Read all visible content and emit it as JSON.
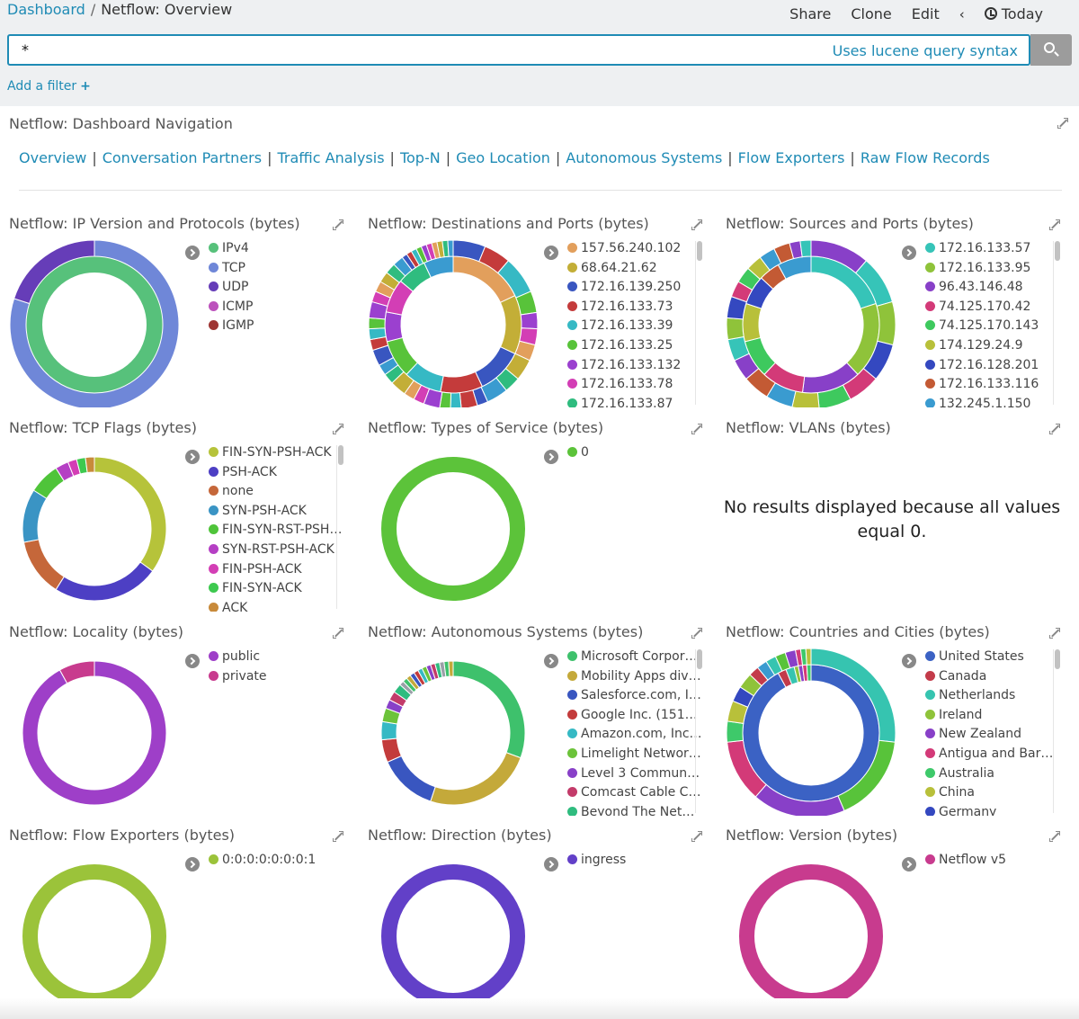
{
  "breadcrumb": {
    "parent": "Dashboard",
    "separator": "/",
    "current": "Netflow: Overview"
  },
  "topnav": {
    "share": "Share",
    "clone": "Clone",
    "edit": "Edit",
    "prev": "‹",
    "time": "Today"
  },
  "search": {
    "query": "*",
    "hint": "Uses lucene query syntax"
  },
  "add_filter": {
    "label": "Add a filter",
    "icon": "+"
  },
  "navigation": {
    "title": "Netflow: Dashboard Navigation",
    "links": [
      "Overview",
      "Conversation Partners",
      "Traffic Analysis",
      "Top-N",
      "Geo Location",
      "Autonomous Systems",
      "Flow Exporters",
      "Raw Flow Records"
    ],
    "separator": "|"
  },
  "colors": {
    "link": "#1f8bb5",
    "title": "#555555"
  },
  "panels": [
    {
      "title": "Netflow: IP Version and Protocols (bytes)",
      "legend": [
        {
          "label": "IPv4",
          "color": "#57c17b"
        },
        {
          "label": "TCP",
          "color": "#6f87d8"
        },
        {
          "label": "UDP",
          "color": "#663db8"
        },
        {
          "label": "ICMP",
          "color": "#bc52bc"
        },
        {
          "label": "IGMP",
          "color": "#9e3533"
        }
      ],
      "scrollbar": false
    },
    {
      "title": "Netflow: Destinations and Ports (bytes)",
      "legend": [
        {
          "label": "157.56.240.102",
          "color": "#e29f5c"
        },
        {
          "label": "68.64.21.62",
          "color": "#c3ae37"
        },
        {
          "label": "172.16.139.250",
          "color": "#3956c0"
        },
        {
          "label": "172.16.133.73",
          "color": "#c43b3b"
        },
        {
          "label": "172.16.133.39",
          "color": "#36b9c4"
        },
        {
          "label": "172.16.133.25",
          "color": "#58c33a"
        },
        {
          "label": "172.16.133.132",
          "color": "#9b40cf"
        },
        {
          "label": "172.16.133.78",
          "color": "#d33eb5"
        },
        {
          "label": "172.16.133.87",
          "color": "#2fbc7f"
        }
      ],
      "scrollbar": true
    },
    {
      "title": "Netflow: Sources and Ports (bytes)",
      "legend": [
        {
          "label": "172.16.133.57",
          "color": "#36c4b8"
        },
        {
          "label": "172.16.133.95",
          "color": "#8fc33a"
        },
        {
          "label": "96.43.146.48",
          "color": "#8840c8"
        },
        {
          "label": "74.125.170.42",
          "color": "#d33a78"
        },
        {
          "label": "74.125.170.143",
          "color": "#3ec95e"
        },
        {
          "label": "174.129.24.9",
          "color": "#b8c03a"
        },
        {
          "label": "172.16.128.201",
          "color": "#3448c0"
        },
        {
          "label": "172.16.133.116",
          "color": "#c35a34"
        },
        {
          "label": "132.245.1.150",
          "color": "#3a9bd0"
        }
      ],
      "scrollbar": true
    },
    {
      "title": "Netflow: TCP Flags (bytes)",
      "legend": [
        {
          "label": "FIN-SYN-PSH-ACK",
          "color": "#b6c33a"
        },
        {
          "label": "PSH-ACK",
          "color": "#4d3fc4"
        },
        {
          "label": "none",
          "color": "#c5673a"
        },
        {
          "label": "SYN-PSH-ACK",
          "color": "#3a94c4"
        },
        {
          "label": "FIN-SYN-RST-PSH-A...",
          "color": "#4fc43a"
        },
        {
          "label": "SYN-RST-PSH-ACK",
          "color": "#b53fc4"
        },
        {
          "label": "FIN-PSH-ACK",
          "color": "#d33eb5"
        },
        {
          "label": "FIN-SYN-ACK",
          "color": "#3ec94f"
        },
        {
          "label": "ACK",
          "color": "#c88a3a"
        }
      ],
      "scrollbar": true
    },
    {
      "title": "Netflow: Types of Service (bytes)",
      "legend": [
        {
          "label": "0",
          "color": "#5cc33a"
        }
      ],
      "scrollbar": false
    },
    {
      "title": "Netflow: VLANs (bytes)",
      "legend": [],
      "message": "No results displayed because all values equal 0.",
      "scrollbar": false
    },
    {
      "title": "Netflow: Locality (bytes)",
      "legend": [
        {
          "label": "public",
          "color": "#9e3fc8"
        },
        {
          "label": "private",
          "color": "#c83b8e"
        }
      ],
      "scrollbar": false
    },
    {
      "title": "Netflow: Autonomous Systems (bytes)",
      "legend": [
        {
          "label": "Microsoft Corporat...",
          "color": "#3ec16c"
        },
        {
          "label": "Mobility Apps divisi...",
          "color": "#c4a93a"
        },
        {
          "label": "Salesforce.com, Inc....",
          "color": "#3956c0"
        },
        {
          "label": "Google Inc. (15169)",
          "color": "#c33b3b"
        },
        {
          "label": "Amazon.com, Inc. (...",
          "color": "#36b9c4"
        },
        {
          "label": "Limelight Networks...",
          "color": "#6cc33a"
        },
        {
          "label": "Level 3 Communic...",
          "color": "#8840c8"
        },
        {
          "label": "Comcast Cable Co...",
          "color": "#c33b6a"
        },
        {
          "label": "Beyond The Netwo...",
          "color": "#2fbc7f"
        }
      ],
      "scrollbar": true
    },
    {
      "title": "Netflow: Countries and Cities (bytes)",
      "legend": [
        {
          "label": "United States",
          "color": "#3b62c4"
        },
        {
          "label": "Canada",
          "color": "#c33b4a"
        },
        {
          "label": "Netherlands",
          "color": "#36c4b0"
        },
        {
          "label": "Ireland",
          "color": "#8fc33a"
        },
        {
          "label": "New Zealand",
          "color": "#8840c8"
        },
        {
          "label": "Antigua and Barbu...",
          "color": "#d33a78"
        },
        {
          "label": "Australia",
          "color": "#3ec96a"
        },
        {
          "label": "China",
          "color": "#b8c03a"
        },
        {
          "label": "Germany",
          "color": "#3448c0"
        }
      ],
      "scrollbar": true
    },
    {
      "title": "Netflow: Flow Exporters (bytes)",
      "legend": [
        {
          "label": "0:0:0:0:0:0:0:1",
          "color": "#9bc33a"
        }
      ],
      "scrollbar": false
    },
    {
      "title": "Netflow: Direction (bytes)",
      "legend": [
        {
          "label": "ingress",
          "color": "#6240c8"
        }
      ],
      "scrollbar": false
    },
    {
      "title": "Netflow: Version (bytes)",
      "legend": [
        {
          "label": "Netflow v5",
          "color": "#c83b8e"
        }
      ],
      "scrollbar": false
    }
  ],
  "donuts": [
    {
      "rings": [
        {
          "values": [
            100
          ],
          "colors": [
            "#57c17b"
          ]
        },
        {
          "values": [
            80,
            20
          ],
          "colors": [
            "#6f87d8",
            "#663db8"
          ]
        }
      ]
    },
    {
      "rings": [
        {
          "values": [
            18,
            14,
            11,
            10,
            9,
            9,
            7,
            8,
            7,
            7
          ],
          "colors": [
            "#e29f5c",
            "#c3ae37",
            "#3956c0",
            "#c43b3b",
            "#36b9c4",
            "#58c33a",
            "#9b40cf",
            "#d33eb5",
            "#2fbc7f",
            "#3a9bd0"
          ]
        },
        {
          "values": [
            6,
            5,
            7,
            4,
            3,
            3,
            3,
            4,
            3,
            4,
            2,
            3,
            2,
            2,
            3,
            2,
            2,
            3,
            2,
            2,
            3,
            2,
            2,
            2,
            3,
            2,
            2,
            2,
            2,
            2,
            1,
            1,
            1,
            1,
            1,
            1,
            1,
            1,
            1,
            1
          ],
          "colors": [
            "#3956c0",
            "#c43b3b",
            "#36b9c4",
            "#58c33a",
            "#9b40cf",
            "#d33eb5",
            "#e29f5c",
            "#c3ae37",
            "#2fbc7f",
            "#3a9bd0"
          ]
        }
      ]
    },
    {
      "rings": [
        {
          "values": [
            20,
            18,
            14,
            10,
            9,
            9,
            7,
            5,
            8
          ],
          "colors": [
            "#36c4b8",
            "#8fc33a",
            "#8840c8",
            "#d33a78",
            "#3ec95e",
            "#b8c03a",
            "#3448c0",
            "#c35a34",
            "#3a9bd0"
          ]
        },
        {
          "values": [
            11,
            9,
            8,
            7,
            6,
            6,
            5,
            5,
            5,
            4,
            4,
            4,
            4,
            3,
            3,
            3,
            3,
            3,
            2,
            2
          ],
          "colors": [
            "#8840c8",
            "#36c4b8",
            "#8fc33a",
            "#3448c0",
            "#d33a78",
            "#3ec95e",
            "#b8c03a",
            "#3a9bd0",
            "#c35a34"
          ]
        }
      ]
    },
    {
      "rings": [
        {
          "values": [
            35,
            24,
            13,
            12,
            7,
            3,
            2,
            2,
            2
          ],
          "colors": [
            "#b6c33a",
            "#4d3fc4",
            "#c5673a",
            "#3a94c4",
            "#4fc43a",
            "#b53fc4",
            "#d33eb5",
            "#3ec94f",
            "#c88a3a"
          ]
        }
      ]
    },
    {
      "rings": [
        {
          "values": [
            100
          ],
          "colors": [
            "#5cc33a"
          ]
        }
      ]
    },
    {
      "rings": []
    },
    {
      "rings": [
        {
          "values": [
            92,
            8
          ],
          "colors": [
            "#9e3fc8",
            "#c83b8e"
          ]
        }
      ]
    },
    {
      "rings": [
        {
          "values": [
            30,
            24,
            13,
            5,
            4,
            3,
            2,
            2,
            2,
            1,
            1,
            1,
            1,
            1,
            1,
            1,
            1,
            1,
            1,
            1,
            1,
            1
          ],
          "colors": [
            "#3ec16c",
            "#c4a93a",
            "#3956c0",
            "#c33b3b",
            "#36b9c4",
            "#6cc33a",
            "#8840c8",
            "#c33b6a",
            "#2fbc7f",
            "#9aa0a8"
          ]
        }
      ]
    },
    {
      "rings": [
        {
          "values": [
            92,
            2,
            2,
            1,
            1,
            1,
            1
          ],
          "colors": [
            "#3b62c4",
            "#c33b4a",
            "#36c4b0",
            "#8fc33a",
            "#8840c8",
            "#d33a78",
            "#3ec96a"
          ]
        },
        {
          "values": [
            27,
            17,
            18,
            12,
            4,
            4,
            3,
            3,
            2,
            2,
            2,
            2,
            2,
            1,
            1,
            1
          ],
          "colors": [
            "#36c4b0",
            "#58c33a",
            "#8840c8",
            "#d33a78",
            "#3ec96a",
            "#b8c03a",
            "#3448c0",
            "#8fc33a",
            "#c33b4a",
            "#3a9bd0"
          ]
        }
      ]
    },
    {
      "rings": [
        {
          "values": [
            100
          ],
          "colors": [
            "#9bc33a"
          ]
        }
      ]
    },
    {
      "rings": [
        {
          "values": [
            100
          ],
          "colors": [
            "#6240c8"
          ]
        }
      ]
    },
    {
      "rings": [
        {
          "values": [
            100
          ],
          "colors": [
            "#c83b8e"
          ]
        }
      ]
    }
  ]
}
